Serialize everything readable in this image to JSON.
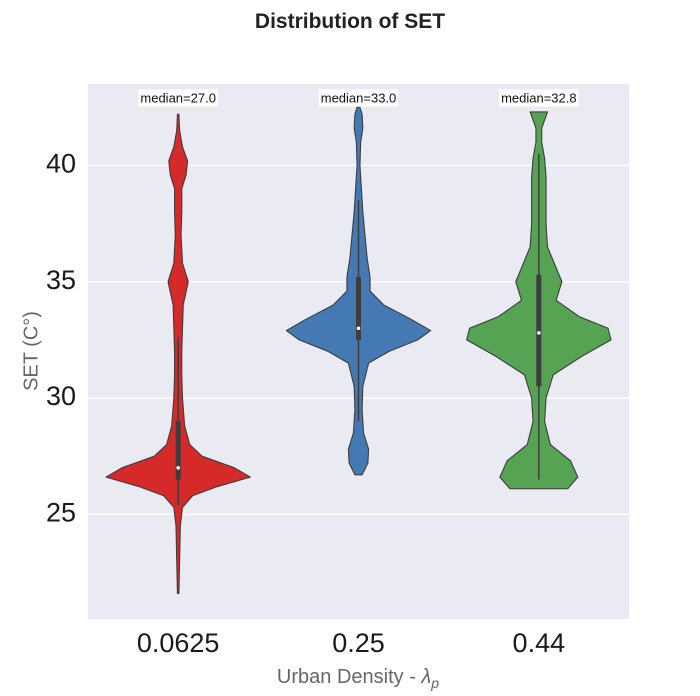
{
  "chart_data": {
    "type": "violin",
    "title": "Distribution of SET",
    "xlabel": "Urban Density - ",
    "xlabel_symbol": "λ",
    "xlabel_sub": "p",
    "ylabel": "SET (C°)",
    "ylim": [
      20.5,
      43.5
    ],
    "yticks": [
      25,
      30,
      35,
      40
    ],
    "grid": true,
    "categories": [
      "0.0625",
      "0.25",
      "0.44"
    ],
    "series": [
      {
        "category": "0.0625",
        "color": "#d62a2a",
        "median": 27.0,
        "median_label": "median=27.0",
        "min": 21.6,
        "max": 42.2,
        "q1": 26.5,
        "q3": 29.0,
        "whisker_low": 25.4,
        "whisker_high": 32.6,
        "density": [
          [
            21.6,
            0.01
          ],
          [
            23,
            0.02
          ],
          [
            24.5,
            0.03
          ],
          [
            25.3,
            0.06
          ],
          [
            25.8,
            0.2
          ],
          [
            26.2,
            0.55
          ],
          [
            26.6,
            1.0
          ],
          [
            27.0,
            0.78
          ],
          [
            27.5,
            0.33
          ],
          [
            28,
            0.16
          ],
          [
            28.8,
            0.09
          ],
          [
            30,
            0.06
          ],
          [
            31,
            0.05
          ],
          [
            32,
            0.05
          ],
          [
            33,
            0.06
          ],
          [
            34,
            0.07
          ],
          [
            35,
            0.14
          ],
          [
            35.8,
            0.06
          ],
          [
            37,
            0.04
          ],
          [
            38,
            0.05
          ],
          [
            39,
            0.05
          ],
          [
            39.6,
            0.11
          ],
          [
            40.2,
            0.13
          ],
          [
            40.8,
            0.06
          ],
          [
            41.5,
            0.02
          ],
          [
            42.2,
            0.01
          ]
        ]
      },
      {
        "category": "0.25",
        "color": "#4479b4",
        "median": 33.0,
        "median_label": "median=33.0",
        "min": 26.7,
        "max": 42.5,
        "q1": 32.5,
        "q3": 35.2,
        "whisker_low": 29.0,
        "whisker_high": 38.5,
        "density": [
          [
            26.7,
            0.05
          ],
          [
            27.2,
            0.13
          ],
          [
            27.8,
            0.14
          ],
          [
            28.5,
            0.07
          ],
          [
            29.5,
            0.05
          ],
          [
            30.5,
            0.06
          ],
          [
            31,
            0.1
          ],
          [
            31.5,
            0.14
          ],
          [
            32,
            0.42
          ],
          [
            32.5,
            0.82
          ],
          [
            32.9,
            1.0
          ],
          [
            33.4,
            0.72
          ],
          [
            34,
            0.35
          ],
          [
            34.6,
            0.16
          ],
          [
            35.2,
            0.16
          ],
          [
            36,
            0.12
          ],
          [
            37,
            0.09
          ],
          [
            38,
            0.06
          ],
          [
            39,
            0.04
          ],
          [
            40,
            0.02
          ],
          [
            41,
            0.03
          ],
          [
            41.6,
            0.06
          ],
          [
            42.2,
            0.05
          ],
          [
            42.5,
            0.02
          ]
        ]
      },
      {
        "category": "0.44",
        "color": "#55a353",
        "median": 32.8,
        "median_label": "median=32.8",
        "min": 26.1,
        "max": 42.3,
        "q1": 30.5,
        "q3": 35.3,
        "whisker_low": 26.5,
        "whisker_high": 40.5,
        "density": [
          [
            26.1,
            0.2
          ],
          [
            26.6,
            0.27
          ],
          [
            27.3,
            0.22
          ],
          [
            28,
            0.08
          ],
          [
            29,
            0.04
          ],
          [
            30,
            0.05
          ],
          [
            31,
            0.1
          ],
          [
            31.8,
            0.3
          ],
          [
            32.5,
            0.5
          ],
          [
            33,
            0.48
          ],
          [
            33.5,
            0.28
          ],
          [
            34.2,
            0.12
          ],
          [
            35,
            0.16
          ],
          [
            35.6,
            0.12
          ],
          [
            36.5,
            0.06
          ],
          [
            37.5,
            0.05
          ],
          [
            38.5,
            0.05
          ],
          [
            39.5,
            0.05
          ],
          [
            40.3,
            0.04
          ],
          [
            41,
            0.02
          ],
          [
            41.6,
            0.02
          ],
          [
            42.3,
            0.06
          ]
        ]
      }
    ]
  }
}
